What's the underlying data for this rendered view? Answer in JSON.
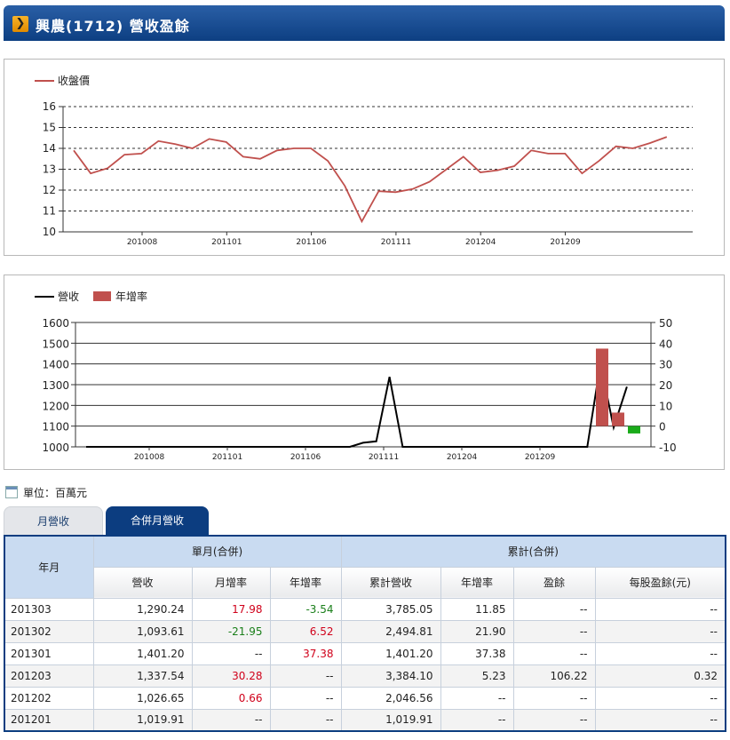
{
  "header": {
    "title": "興農(1712) 營收盈餘",
    "arrow_glyph": "❯"
  },
  "price_chart": {
    "legend": "收盤價",
    "color": "#c0504d",
    "yticks": [
      "16",
      "15",
      "14",
      "13",
      "12",
      "11",
      "10"
    ],
    "xticks": [
      "201008",
      "201101",
      "201106",
      "201111",
      "201204",
      "201209"
    ]
  },
  "revenue_chart": {
    "legend_line": "營收",
    "legend_bar": "年增率",
    "line_color": "#000000",
    "bar_color": "#c0504d",
    "neg_bar_color": "#1aab1a",
    "yticks_left": [
      "1600",
      "1500",
      "1400",
      "1300",
      "1200",
      "1100",
      "1000"
    ],
    "yticks_right": [
      "50",
      "40",
      "30",
      "20",
      "10",
      "0",
      "-10"
    ],
    "xticks": [
      "201008",
      "201101",
      "201106",
      "201111",
      "201204",
      "201209"
    ]
  },
  "chart_data": [
    {
      "type": "line",
      "series": [
        {
          "name": "收盤價",
          "values": [
            13.9,
            12.8,
            13.05,
            13.7,
            13.75,
            14.35,
            14.2,
            14.0,
            14.45,
            14.3,
            13.6,
            13.5,
            13.9,
            14.0,
            14.0,
            13.4,
            12.2,
            10.5,
            11.95,
            11.9,
            12.05,
            12.4,
            13.0,
            13.6,
            12.85,
            12.95,
            13.15,
            13.9,
            13.75,
            13.75,
            12.8,
            13.4,
            14.1,
            14.0,
            14.25,
            14.55
          ]
        }
      ],
      "xlabel": "",
      "ylabel": "",
      "ylim": [
        10,
        16
      ],
      "x_ticks": [
        "201008",
        "201101",
        "201106",
        "201111",
        "201204",
        "201209"
      ],
      "legend": "top-left",
      "grid": true
    },
    {
      "type": "line",
      "series": [
        {
          "name": "營收",
          "values": [
            1000,
            1000,
            1000,
            1000,
            1000,
            1000,
            1000,
            1000,
            1000,
            1000,
            1000,
            1000,
            1000,
            1000,
            1000,
            1000,
            1000,
            1000,
            1000,
            1000,
            1000,
            1019.91,
            1026.65,
            1337.54,
            1000,
            1000,
            1000,
            1000,
            1000,
            1000,
            1000,
            1000,
            1000,
            1000,
            1000,
            1000,
            1000,
            1000,
            1000,
            1401.2,
            1093.61,
            1290.24
          ]
        },
        {
          "name": "年增率",
          "type": "bar",
          "values": [
            37.38,
            6.52,
            -3.54
          ]
        }
      ],
      "ylim_left": [
        1000,
        1600
      ],
      "ylim_right": [
        -10,
        50
      ],
      "x_ticks": [
        "201008",
        "201101",
        "201106",
        "201111",
        "201204",
        "201209"
      ],
      "legend": "top-left",
      "grid": true
    }
  ],
  "unit_label": "單位：百萬元",
  "tabs": [
    {
      "label": "月營收",
      "active": false
    },
    {
      "label": "合併月營收",
      "active": true
    }
  ],
  "table": {
    "ym_header": "年月",
    "group1": "單月(合併)",
    "group2": "累計(合併)",
    "sub_headers": [
      "營收",
      "月增率",
      "年增率",
      "累計營收",
      "年增率",
      "盈餘",
      "每股盈餘(元)"
    ],
    "rows": [
      {
        "ym": "201303",
        "rev": "1,290.24",
        "mom": "17.98",
        "yoy": "-3.54",
        "cum": "3,785.05",
        "cyoy": "11.85",
        "earn": "--",
        "eps": "--"
      },
      {
        "ym": "201302",
        "rev": "1,093.61",
        "mom": "-21.95",
        "yoy": "6.52",
        "cum": "2,494.81",
        "cyoy": "21.90",
        "earn": "--",
        "eps": "--"
      },
      {
        "ym": "201301",
        "rev": "1,401.20",
        "mom": "--",
        "yoy": "37.38",
        "cum": "1,401.20",
        "cyoy": "37.38",
        "earn": "--",
        "eps": "--"
      },
      {
        "ym": "201203",
        "rev": "1,337.54",
        "mom": "30.28",
        "yoy": "--",
        "cum": "3,384.10",
        "cyoy": "5.23",
        "earn": "106.22",
        "eps": "0.32"
      },
      {
        "ym": "201202",
        "rev": "1,026.65",
        "mom": "0.66",
        "yoy": "--",
        "cum": "2,046.56",
        "cyoy": "--",
        "earn": "--",
        "eps": "--"
      },
      {
        "ym": "201201",
        "rev": "1,019.91",
        "mom": "--",
        "yoy": "--",
        "cum": "1,019.91",
        "cyoy": "--",
        "earn": "--",
        "eps": "--"
      }
    ]
  }
}
